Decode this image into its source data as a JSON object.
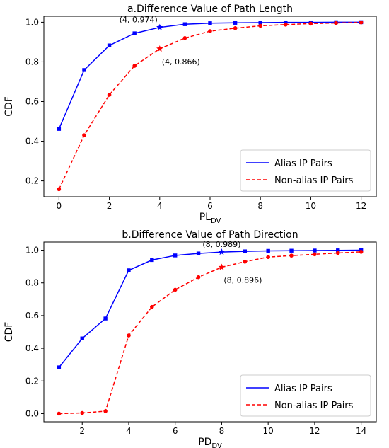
{
  "colors": {
    "alias": "#0000ff",
    "non_alias": "#ff0000",
    "axis": "#000000",
    "background": "#ffffff"
  },
  "chart_data": [
    {
      "type": "line",
      "title": "a.Difference Value of Path Length",
      "xlabel_main": "PL",
      "xlabel_sub": "DV",
      "ylabel": "CDF",
      "xlim": [
        -0.6,
        12.6
      ],
      "ylim": [
        0.12,
        1.03
      ],
      "xticks": [
        0,
        2,
        4,
        6,
        8,
        10,
        12
      ],
      "yticks": [
        0.2,
        0.4,
        0.6,
        0.8,
        1.0
      ],
      "ytick_labels": [
        "0.2",
        "0.4",
        "0.6",
        "0.8",
        "1.0"
      ],
      "grid": false,
      "legend_position": "lower-right",
      "series": [
        {
          "name": "Alias IP Pairs",
          "style": "solid",
          "marker": "square",
          "x": [
            0,
            1,
            2,
            3,
            4,
            5,
            6,
            7,
            8,
            9,
            10,
            11,
            12
          ],
          "y": [
            0.462,
            0.759,
            0.883,
            0.944,
            0.974,
            0.99,
            0.995,
            0.997,
            0.998,
            0.999,
            0.999,
            1.0,
            1.0
          ]
        },
        {
          "name": "Non-alias IP Pairs",
          "style": "dashed",
          "marker": "circle",
          "x": [
            0,
            1,
            2,
            3,
            4,
            5,
            6,
            7,
            8,
            9,
            10,
            11,
            12
          ],
          "y": [
            0.158,
            0.43,
            0.634,
            0.78,
            0.866,
            0.92,
            0.955,
            0.97,
            0.982,
            0.988,
            0.993,
            0.996,
            0.999
          ]
        }
      ],
      "annotations": [
        {
          "text": "(4, 0.974)",
          "series": 0,
          "x": 4,
          "y": 0.974,
          "placement": "upper-left"
        },
        {
          "text": "(4, 0.866)",
          "series": 1,
          "x": 4,
          "y": 0.866,
          "placement": "lower-right"
        }
      ]
    },
    {
      "type": "line",
      "title": "b.Difference Value of Path Direction",
      "xlabel_main": "PD",
      "xlabel_sub": "DV",
      "ylabel": "CDF",
      "xlim": [
        0.35,
        14.65
      ],
      "ylim": [
        -0.05,
        1.05
      ],
      "xticks": [
        2,
        4,
        6,
        8,
        10,
        12,
        14
      ],
      "yticks": [
        0.0,
        0.2,
        0.4,
        0.6,
        0.8,
        1.0
      ],
      "ytick_labels": [
        "0.0",
        "0.2",
        "0.4",
        "0.6",
        "0.8",
        "1.0"
      ],
      "grid": false,
      "legend_position": "lower-right",
      "series": [
        {
          "name": "Alias IP Pairs",
          "style": "solid",
          "marker": "square",
          "x": [
            1,
            2,
            3,
            4,
            5,
            6,
            7,
            8,
            9,
            10,
            11,
            12,
            13,
            14
          ],
          "y": [
            0.283,
            0.46,
            0.582,
            0.877,
            0.94,
            0.968,
            0.98,
            0.989,
            0.993,
            0.996,
            0.997,
            0.998,
            0.999,
            1.0
          ]
        },
        {
          "name": "Non-alias IP Pairs",
          "style": "dashed",
          "marker": "circle",
          "x": [
            1,
            2,
            3,
            4,
            5,
            6,
            7,
            8,
            9,
            10,
            11,
            12,
            13,
            14
          ],
          "y": [
            0.0,
            0.004,
            0.015,
            0.478,
            0.653,
            0.758,
            0.835,
            0.896,
            0.93,
            0.958,
            0.967,
            0.975,
            0.983,
            0.99
          ]
        }
      ],
      "annotations": [
        {
          "text": "(8, 0.989)",
          "series": 0,
          "x": 8,
          "y": 0.989,
          "placement": "upper-center"
        },
        {
          "text": "(8, 0.896)",
          "series": 1,
          "x": 8,
          "y": 0.896,
          "placement": "lower-right"
        }
      ]
    }
  ]
}
